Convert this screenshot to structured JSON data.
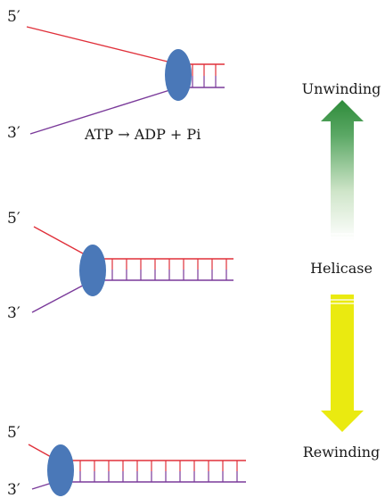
{
  "labels": {
    "five_prime": "5′",
    "three_prime": "3′",
    "equation": "ATP → ADP + Pi",
    "unwinding": "Unwinding",
    "helicase": "Helicase",
    "rewinding": "Rewinding"
  },
  "colors": {
    "top_strand": "#e0303a",
    "bottom_strand": "#7a3a9a",
    "helicase_body": "#4a78b8",
    "unwinding_arrow": "#2e8b3a",
    "rewinding_arrow": "#eaea10"
  },
  "icons": {
    "helicase": "ellipse",
    "unwinding_arrow": "arrow-up",
    "rewinding_arrow": "arrow-down"
  }
}
